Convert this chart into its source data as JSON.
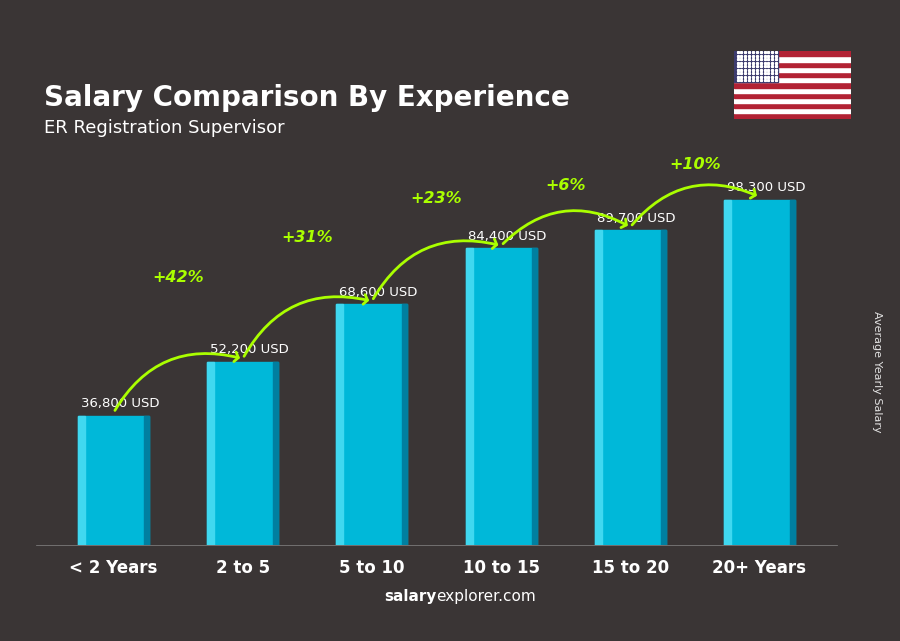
{
  "title": "Salary Comparison By Experience",
  "subtitle": "ER Registration Supervisor",
  "categories": [
    "< 2 Years",
    "2 to 5",
    "5 to 10",
    "10 to 15",
    "15 to 20",
    "20+ Years"
  ],
  "values": [
    36800,
    52200,
    68600,
    84400,
    89700,
    98300
  ],
  "labels": [
    "36,800 USD",
    "52,200 USD",
    "68,600 USD",
    "84,400 USD",
    "89,700 USD",
    "98,300 USD"
  ],
  "pct_changes": [
    "+42%",
    "+31%",
    "+23%",
    "+6%",
    "+10%"
  ],
  "bar_color_top": "#40d8f0",
  "bar_color_mid": "#00b8d9",
  "bar_color_dark": "#007fa0",
  "background_color": "#3a3535",
  "title_color": "#ffffff",
  "subtitle_color": "#ffffff",
  "label_color": "#ffffff",
  "pct_color": "#aaff00",
  "ylabel": "Average Yearly Salary",
  "footer_bold": "salary",
  "footer_normal": "explorer.com",
  "ylim": [
    0,
    115000
  ]
}
